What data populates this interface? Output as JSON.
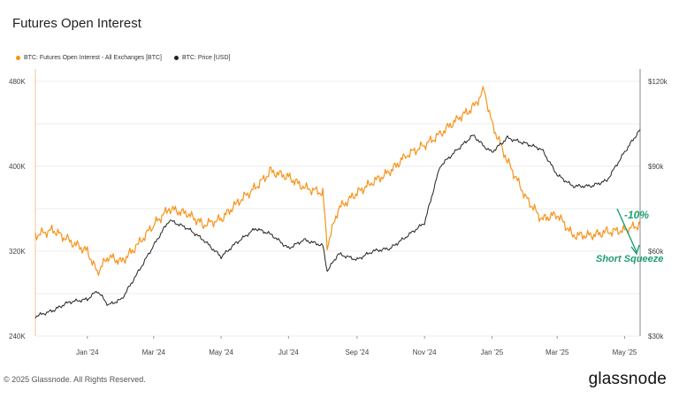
{
  "header": {
    "title": "Futures Open Interest"
  },
  "legend": [
    {
      "label": "BTC: Futures Open Interest - All Exchanges [BTC]",
      "color": "#f7931a"
    },
    {
      "label": "BTC: Price [USD]",
      "color": "#222222"
    }
  ],
  "footer": {
    "copyright": "© 2025 Glassnode. All Rights Reserved.",
    "brand": "glassnode"
  },
  "annotations": {
    "drop_pct": "-10%",
    "event_label": "Short Squeeze",
    "color": "#1f9e6e"
  },
  "chart_data": {
    "type": "line",
    "title": "Futures Open Interest",
    "x_tick_labels": [
      "Jan '24",
      "Mar '24",
      "May '24",
      "Jul '24",
      "Sep '24",
      "Nov '24",
      "Jan '25",
      "Mar '25",
      "May '25"
    ],
    "x_tick_dates": [
      "2024-01-01",
      "2024-03-01",
      "2024-05-01",
      "2024-07-01",
      "2024-09-01",
      "2024-11-01",
      "2025-01-01",
      "2025-03-01",
      "2025-05-01"
    ],
    "x_range": [
      "2023-11-15",
      "2025-05-15"
    ],
    "y_left": {
      "ticks": [
        240000,
        320000,
        400000,
        480000
      ],
      "tick_labels": [
        "240K",
        "320K",
        "400K",
        "480K"
      ],
      "range": [
        240000,
        480000
      ]
    },
    "y_right": {
      "ticks": [
        30000,
        60000,
        90000,
        120000
      ],
      "tick_labels": [
        "$30k",
        "$60k",
        "$90k",
        "$120k"
      ],
      "range": [
        30000,
        120000
      ]
    },
    "grid": true,
    "legend_position": "top-left",
    "series": [
      {
        "name": "BTC: Futures Open Interest - All Exchanges [BTC]",
        "axis": "left",
        "color": "#f7931a",
        "x": [
          "2023-11-15",
          "2023-12-01",
          "2023-12-15",
          "2024-01-01",
          "2024-01-10",
          "2024-01-20",
          "2024-02-01",
          "2024-02-15",
          "2024-03-01",
          "2024-03-15",
          "2024-04-01",
          "2024-04-15",
          "2024-05-01",
          "2024-05-15",
          "2024-06-01",
          "2024-06-15",
          "2024-07-01",
          "2024-07-15",
          "2024-08-01",
          "2024-08-05",
          "2024-08-15",
          "2024-09-01",
          "2024-09-15",
          "2024-10-01",
          "2024-10-15",
          "2024-11-01",
          "2024-11-15",
          "2024-12-01",
          "2024-12-15",
          "2024-12-25",
          "2025-01-01",
          "2025-01-15",
          "2025-02-01",
          "2025-02-15",
          "2025-03-01",
          "2025-03-15",
          "2025-04-01",
          "2025-04-15",
          "2025-05-01",
          "2025-05-15"
        ],
        "values": [
          335000,
          340000,
          330000,
          320000,
          300000,
          315000,
          310000,
          325000,
          345000,
          360000,
          355000,
          345000,
          350000,
          365000,
          380000,
          395000,
          390000,
          380000,
          375000,
          325000,
          360000,
          375000,
          385000,
          395000,
          410000,
          420000,
          430000,
          445000,
          455000,
          472000,
          440000,
          405000,
          370000,
          350000,
          355000,
          335000,
          335000,
          338000,
          340000,
          345000
        ]
      },
      {
        "name": "BTC: Price [USD]",
        "axis": "right",
        "color": "#222222",
        "x": [
          "2023-11-15",
          "2023-12-01",
          "2023-12-15",
          "2024-01-01",
          "2024-01-10",
          "2024-01-20",
          "2024-02-01",
          "2024-02-15",
          "2024-03-01",
          "2024-03-15",
          "2024-04-01",
          "2024-04-15",
          "2024-05-01",
          "2024-05-15",
          "2024-06-01",
          "2024-06-15",
          "2024-07-01",
          "2024-07-15",
          "2024-08-01",
          "2024-08-05",
          "2024-08-15",
          "2024-09-01",
          "2024-09-15",
          "2024-10-01",
          "2024-10-15",
          "2024-11-01",
          "2024-11-15",
          "2024-12-01",
          "2024-12-15",
          "2024-12-25",
          "2025-01-01",
          "2025-01-15",
          "2025-02-01",
          "2025-02-15",
          "2025-03-01",
          "2025-03-15",
          "2025-04-01",
          "2025-04-15",
          "2025-05-01",
          "2025-05-15"
        ],
        "values": [
          37000,
          39000,
          42000,
          43000,
          46000,
          41000,
          43000,
          52000,
          62000,
          71000,
          68000,
          64000,
          58000,
          63000,
          68000,
          66000,
          61000,
          64000,
          62000,
          53000,
          59000,
          57000,
          60000,
          61000,
          65000,
          70000,
          90000,
          96000,
          101000,
          97000,
          95000,
          100000,
          98000,
          96000,
          87000,
          83000,
          83000,
          85000,
          95000,
          103000
        ]
      }
    ]
  }
}
